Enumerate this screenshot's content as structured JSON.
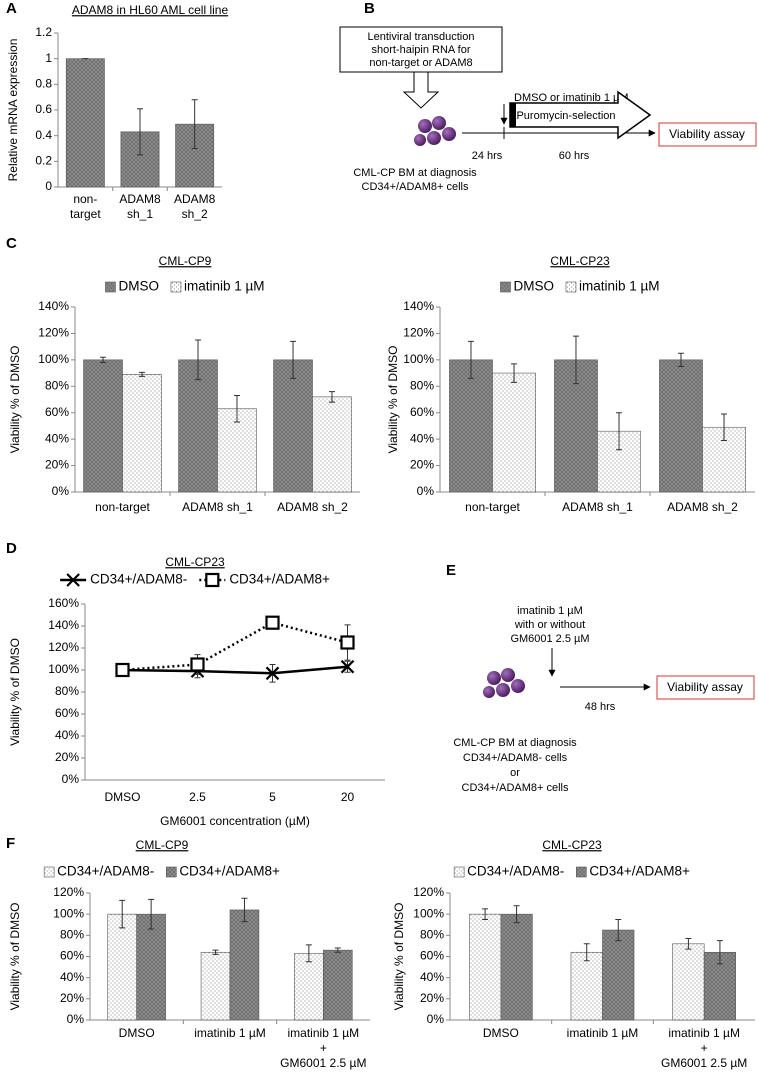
{
  "panel_labels": [
    "A",
    "B",
    "C",
    "D",
    "E",
    "F"
  ],
  "chart_data": [
    {
      "type": "bar",
      "title": "ADAM8 in HL60 AML cell line",
      "y_label": "Relative mRNA expression",
      "categories": [
        "non-target",
        "ADAM8\nsh_1",
        "ADAM8\nsh_2"
      ],
      "values": [
        1,
        0.43,
        0.49
      ],
      "errors": [
        0,
        0.18,
        0.19
      ],
      "color": "#6e6e6e",
      "pattern": "crosshatch",
      "ylim": [
        0,
        1.2
      ],
      "yticks": [
        0,
        0.2,
        0.4,
        0.6,
        0.8,
        1,
        1.2
      ],
      "grid": false
    },
    {
      "type": "bar",
      "title": "CML-CP9",
      "y_label": "Viability % of DMSO",
      "categories": [
        "non-target",
        "ADAM8 sh_1",
        "ADAM8 sh_2"
      ],
      "series": [
        {
          "name": "DMSO",
          "color": "#6e6e6e",
          "pattern": "crosshatch",
          "values": [
            100,
            100,
            100
          ],
          "errors": [
            2,
            15,
            14
          ]
        },
        {
          "name": "imatinib 1 µM",
          "color": "#ffffff",
          "pattern": "dots",
          "values": [
            89,
            63,
            72
          ],
          "errors": [
            1.5,
            10,
            4
          ]
        }
      ],
      "ylim": [
        0,
        140
      ],
      "yticks": [
        {
          "value": 0,
          "label": "0%"
        },
        {
          "value": 20,
          "label": "20%"
        },
        {
          "value": 40,
          "label": "40%"
        },
        {
          "value": 60,
          "label": "60%"
        },
        {
          "value": 80,
          "label": "80%"
        },
        {
          "value": 100,
          "label": "100%"
        },
        {
          "value": 120,
          "label": "120%"
        },
        {
          "value": 140,
          "label": "140%"
        }
      ],
      "legend": "top",
      "grid": false
    },
    {
      "type": "bar",
      "title": "CML-CP23",
      "y_label": "Viability % of DMSO",
      "categories": [
        "non-target",
        "ADAM8 sh_1",
        "ADAM8 sh_2"
      ],
      "series": [
        {
          "name": "DMSO",
          "color": "#6e6e6e",
          "pattern": "crosshatch",
          "values": [
            100,
            100,
            100
          ],
          "errors": [
            14,
            18,
            5
          ]
        },
        {
          "name": "imatinib 1 µM",
          "color": "#ffffff",
          "pattern": "dots",
          "values": [
            90,
            46,
            49
          ],
          "errors": [
            7,
            14,
            10
          ]
        }
      ],
      "ylim": [
        0,
        140
      ],
      "yticks": [
        {
          "value": 0,
          "label": "0%"
        },
        {
          "value": 20,
          "label": "20%"
        },
        {
          "value": 40,
          "label": "40%"
        },
        {
          "value": 60,
          "label": "60%"
        },
        {
          "value": 80,
          "label": "80%"
        },
        {
          "value": 100,
          "label": "100%"
        },
        {
          "value": 120,
          "label": "120%"
        },
        {
          "value": 140,
          "label": "140%"
        }
      ],
      "legend": "top",
      "grid": false
    },
    {
      "type": "line",
      "title": "CML-CP23",
      "y_label": "Viability % of DMSO",
      "x_label": "GM6001 concentration (µM)",
      "categories": [
        "DMSO",
        "2.5",
        "5",
        "20"
      ],
      "series": [
        {
          "name": "CD34+/ADAM8-",
          "color": "#000000",
          "marker": "x",
          "dash": false,
          "values": [
            100,
            99,
            97,
            103
          ],
          "errors": [
            4,
            6,
            8,
            5
          ]
        },
        {
          "name": "CD34+/ADAM8+",
          "color": "#000000",
          "marker": "square",
          "dash": true,
          "values": [
            100,
            105,
            143,
            125
          ],
          "errors": [
            4,
            9,
            4,
            16
          ]
        }
      ],
      "ylim": [
        0,
        160
      ],
      "yticks": [
        {
          "value": 0,
          "label": "0%"
        },
        {
          "value": 20,
          "label": "20%"
        },
        {
          "value": 40,
          "label": "40%"
        },
        {
          "value": 60,
          "label": "60%"
        },
        {
          "value": 80,
          "label": "80%"
        },
        {
          "value": 100,
          "label": "100%"
        },
        {
          "value": 120,
          "label": "120%"
        },
        {
          "value": 140,
          "label": "140%"
        },
        {
          "value": 160,
          "label": "160%"
        }
      ],
      "legend": "top",
      "grid": false
    },
    {
      "type": "bar",
      "title": "CML-CP9",
      "y_label": "Viability % of DMSO",
      "categories": [
        "DMSO",
        "imatinib 1 µM",
        "imatinib 1 µM\n+\nGM6001 2.5 µM"
      ],
      "series": [
        {
          "name": "CD34+/ADAM8-",
          "color": "#ffffff",
          "pattern": "dots",
          "values": [
            100,
            64,
            63
          ],
          "errors": [
            13,
            2,
            8
          ]
        },
        {
          "name": "CD34+/ADAM8+",
          "color": "#6e6e6e",
          "pattern": "crosshatch",
          "values": [
            100,
            104,
            66
          ],
          "errors": [
            14,
            11,
            2
          ]
        }
      ],
      "ylim": [
        0,
        120
      ],
      "yticks": [
        {
          "value": 0,
          "label": "0%"
        },
        {
          "value": 20,
          "label": "20%"
        },
        {
          "value": 40,
          "label": "40%"
        },
        {
          "value": 60,
          "label": "60%"
        },
        {
          "value": 80,
          "label": "80%"
        },
        {
          "value": 100,
          "label": "100%"
        },
        {
          "value": 120,
          "label": "120%"
        }
      ],
      "legend": "top",
      "grid": false
    },
    {
      "type": "bar",
      "title": "CML-CP23",
      "y_label": "Viability % of DMSO",
      "categories": [
        "DMSO",
        "imatinib 1 µM",
        "imatinib 1 µM\n+\nGM6001 2.5 µM"
      ],
      "series": [
        {
          "name": "CD34+/ADAM8-",
          "color": "#ffffff",
          "pattern": "dots",
          "values": [
            100,
            64,
            72
          ],
          "errors": [
            5,
            8,
            5
          ]
        },
        {
          "name": "CD34+/ADAM8+",
          "color": "#6e6e6e",
          "pattern": "crosshatch",
          "values": [
            100,
            85,
            64
          ],
          "errors": [
            8,
            10,
            11
          ]
        }
      ],
      "ylim": [
        0,
        120
      ],
      "yticks": [
        {
          "value": 0,
          "label": "0%"
        },
        {
          "value": 20,
          "label": "20%"
        },
        {
          "value": 40,
          "label": "40%"
        },
        {
          "value": 60,
          "label": "60%"
        },
        {
          "value": 80,
          "label": "80%"
        },
        {
          "value": 100,
          "label": "100%"
        },
        {
          "value": 120,
          "label": "120%"
        }
      ],
      "legend": "top",
      "grid": false
    }
  ],
  "diagram_b": {
    "box_lines": [
      "Lentiviral transduction",
      "short-haipin RNA for",
      "non-target or ADAM8"
    ],
    "treatment": "DMSO or imatinib 1 µM",
    "selection": "Puromycin-selection",
    "assay": "Viability assay",
    "time_1": "24 hrs",
    "time_2": "60 hrs",
    "cell_lines": [
      "CML-CP BM at diagnosis",
      "CD34+/ADAM8+ cells"
    ]
  },
  "diagram_e": {
    "treatment_lines": [
      "imatinib 1 µM",
      "with or without",
      "GM6001 2.5 µM"
    ],
    "time": "48 hrs",
    "assay": "Viability assay",
    "cell_lines": [
      "CML-CP BM at diagnosis",
      "CD34+/ADAM8- cells",
      "or",
      "CD34+/ADAM8+ cells"
    ]
  }
}
